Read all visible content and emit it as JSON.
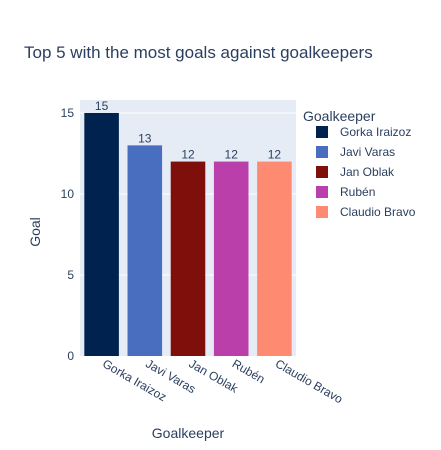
{
  "chart_data": {
    "type": "bar",
    "title": "Top 5 with the most goals against goalkeepers",
    "xlabel": "Goalkeeper",
    "ylabel": "Goal",
    "categories": [
      "Gorka Iraizoz",
      "Javi Varas",
      "Jan Oblak",
      "Rubén",
      "Claudio Bravo"
    ],
    "values": [
      15,
      13,
      12,
      12,
      12
    ],
    "colors": [
      "#00224e",
      "#4a6ebf",
      "#7f0f0a",
      "#bb3faa",
      "#ff8a72"
    ],
    "ylim": [
      0,
      15.8
    ],
    "yticks": [
      0,
      5,
      10,
      15
    ],
    "grid": true,
    "plot_background": "#e5ecf6",
    "legend": {
      "title": "Goalkeeper",
      "placement": "right",
      "entries": [
        "Gorka Iraizoz",
        "Javi Varas",
        "Jan Oblak",
        "Rubén",
        "Claudio Bravo"
      ]
    }
  }
}
